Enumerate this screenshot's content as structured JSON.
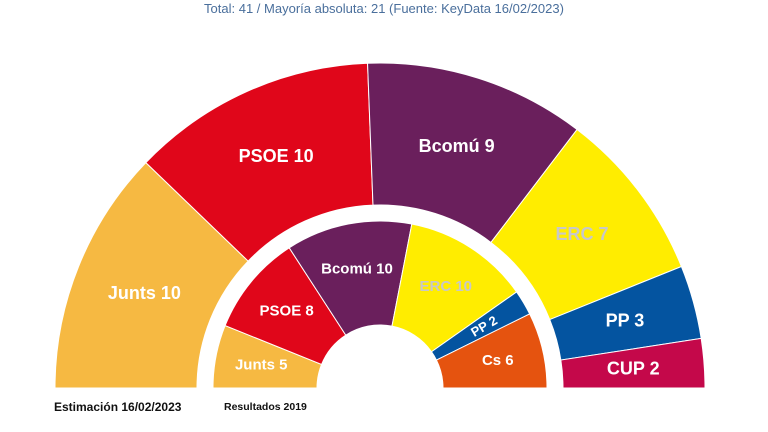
{
  "chart_data": {
    "type": "pie",
    "subtype": "parliament-semicircle",
    "title": "Total: 41 / Mayoría absoluta: 21 (Fuente: KeyData 16/02/2023)",
    "total_seats": 41,
    "majority": 21,
    "rings": [
      {
        "name": "Estimación 16/02/2023",
        "position": "outer",
        "series": [
          {
            "party": "Junts",
            "label": "Junts 10",
            "seats": 10,
            "color": "#f6b942",
            "text_color": "#ffffff"
          },
          {
            "party": "PSOE",
            "label": "PSOE 10",
            "seats": 10,
            "color": "#e0061a",
            "text_color": "#ffffff"
          },
          {
            "party": "Bcomú",
            "label": "Bcomú 9",
            "seats": 9,
            "color": "#6a1f5c",
            "text_color": "#ffffff"
          },
          {
            "party": "ERC",
            "label": "ERC 7",
            "seats": 7,
            "color": "#ffed00",
            "text_color": "#c8c8c8"
          },
          {
            "party": "PP",
            "label": "PP 3",
            "seats": 3,
            "color": "#0454a0",
            "text_color": "#ffffff"
          },
          {
            "party": "CUP",
            "label": "CUP 2",
            "seats": 2,
            "color": "#c4084a",
            "text_color": "#ffffff"
          }
        ]
      },
      {
        "name": "Resultados 2019",
        "position": "inner",
        "series": [
          {
            "party": "Junts",
            "label": "Junts 5",
            "seats": 5,
            "color": "#f6b942",
            "text_color": "#ffffff"
          },
          {
            "party": "PSOE",
            "label": "PSOE 8",
            "seats": 8,
            "color": "#e0061a",
            "text_color": "#ffffff"
          },
          {
            "party": "Bcomú",
            "label": "Bcomú 10",
            "seats": 10,
            "color": "#6a1f5c",
            "text_color": "#ffffff"
          },
          {
            "party": "ERC",
            "label": "ERC 10",
            "seats": 10,
            "color": "#ffed00",
            "text_color": "#c8c8c8"
          },
          {
            "party": "PP",
            "label": "PP 2",
            "seats": 2,
            "color": "#0454a0",
            "text_color": "#ffffff"
          },
          {
            "party": "Cs",
            "label": "Cs 6",
            "seats": 6,
            "color": "#e5530f",
            "text_color": "#ffffff"
          }
        ]
      }
    ]
  }
}
